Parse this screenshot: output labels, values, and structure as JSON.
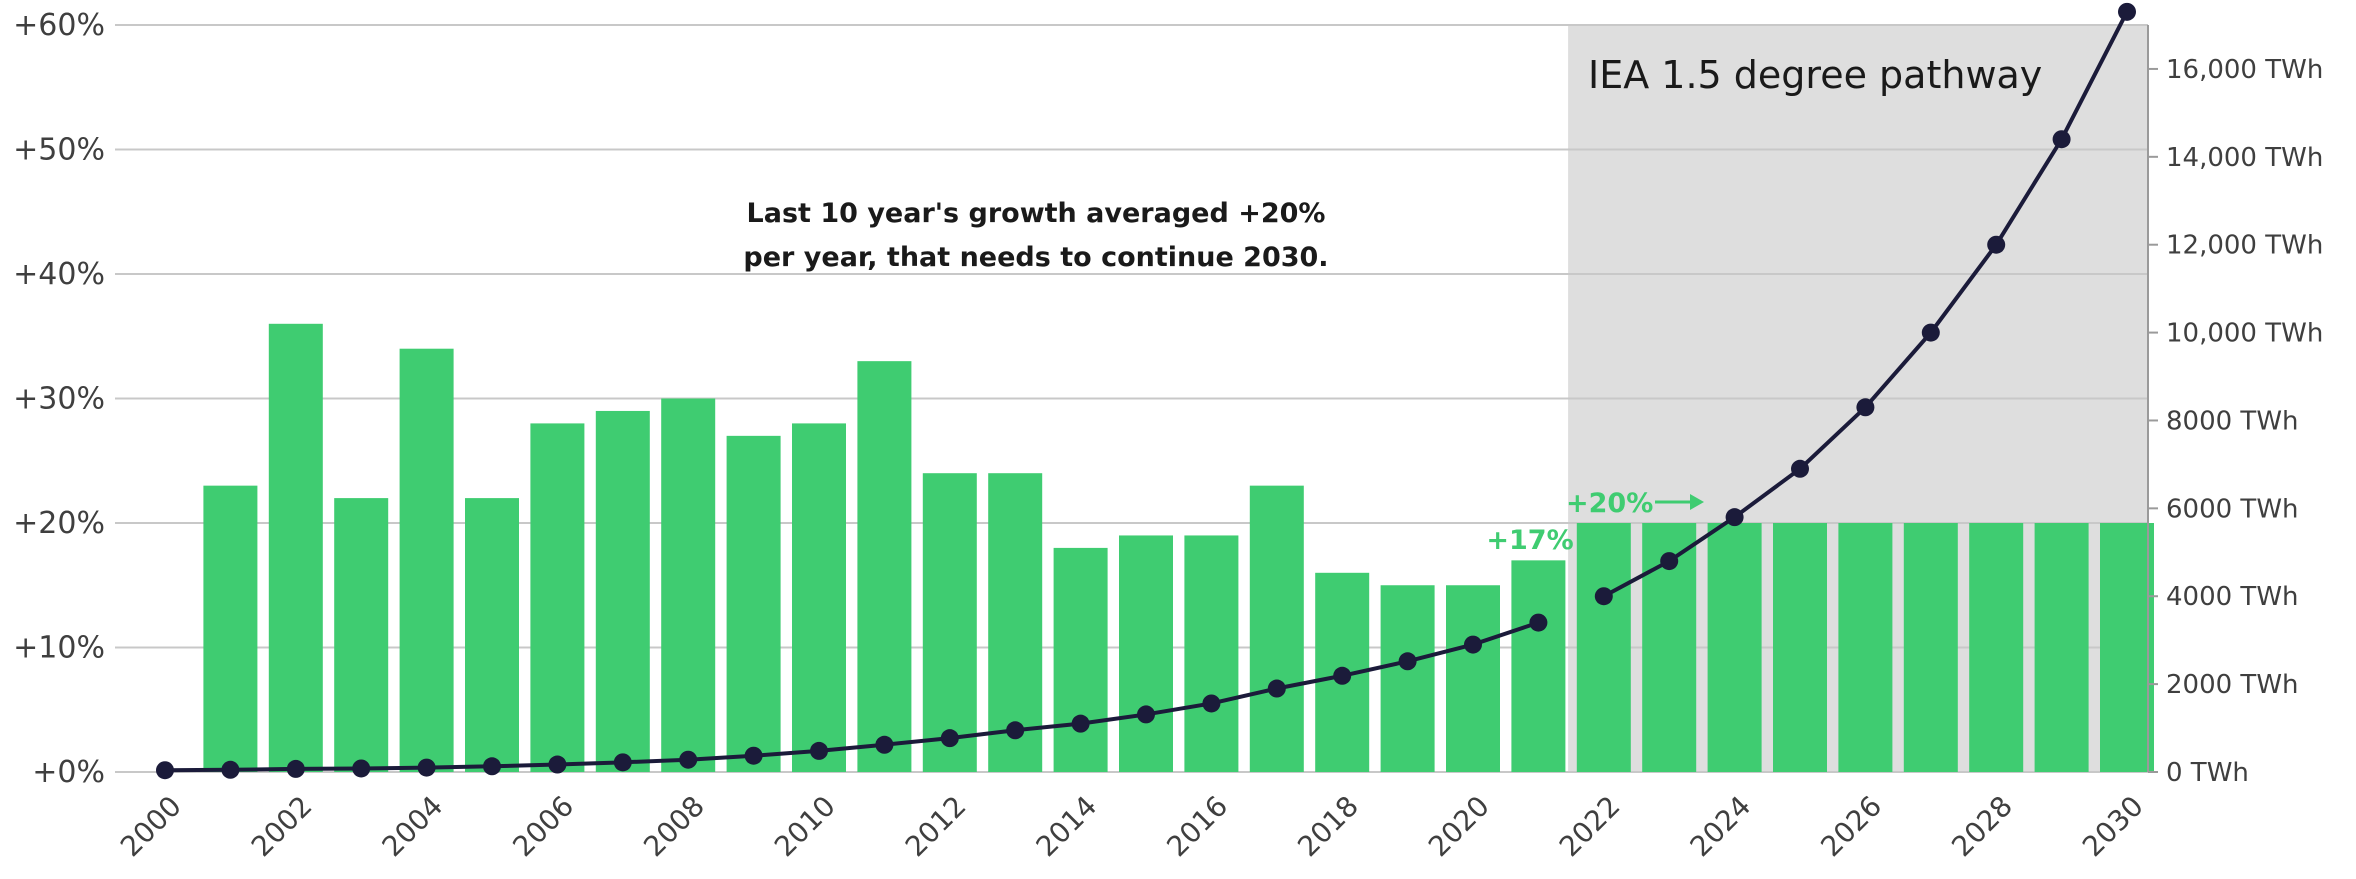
{
  "chart_data": {
    "type": "bar",
    "years": [
      "2000",
      "2001",
      "2002",
      "2003",
      "2004",
      "2005",
      "2006",
      "2007",
      "2008",
      "2009",
      "2010",
      "2011",
      "2012",
      "2013",
      "2014",
      "2015",
      "2016",
      "2017",
      "2018",
      "2019",
      "2020",
      "2021",
      "2022",
      "2023",
      "2024",
      "2025",
      "2026",
      "2027",
      "2028",
      "2029",
      "2030"
    ],
    "x_tick_labels": [
      "2000",
      "2002",
      "2004",
      "2006",
      "2008",
      "2010",
      "2012",
      "2014",
      "2016",
      "2018",
      "2020",
      "2022",
      "2024",
      "2026",
      "2028",
      "2030"
    ],
    "growth_pct": [
      0,
      23,
      36,
      22,
      34,
      22,
      28,
      29,
      30,
      27,
      28,
      33,
      24,
      24,
      18,
      19,
      19,
      23,
      16,
      15,
      15,
      17,
      20,
      20,
      20,
      20,
      20,
      20,
      20,
      20,
      20
    ],
    "generation_twh_historical": {
      "years": [
        "2000",
        "2001",
        "2002",
        "2003",
        "2004",
        "2005",
        "2006",
        "2007",
        "2008",
        "2009",
        "2010",
        "2011",
        "2012",
        "2013",
        "2014",
        "2015",
        "2016",
        "2017",
        "2018",
        "2019",
        "2020",
        "2021"
      ],
      "values": [
        40,
        50,
        70,
        80,
        100,
        130,
        170,
        220,
        280,
        370,
        480,
        620,
        770,
        950,
        1100,
        1310,
        1560,
        1900,
        2190,
        2520,
        2900,
        3400
      ]
    },
    "generation_twh_pathway": {
      "years": [
        "2022",
        "2023",
        "2024",
        "2025",
        "2026",
        "2027",
        "2028",
        "2029",
        "2030"
      ],
      "values": [
        4000,
        4800,
        5800,
        6900,
        8300,
        10000,
        12000,
        14400,
        17300
      ]
    },
    "left_axis": {
      "ylim": [
        0,
        60
      ],
      "tick_labels": [
        "+0%",
        "+10%",
        "+20%",
        "+30%",
        "+40%",
        "+50%",
        "+60%"
      ]
    },
    "right_axis": {
      "ylim": [
        0,
        17000
      ],
      "tick_values": [
        0,
        2000,
        4000,
        6000,
        8000,
        10000,
        12000,
        14000,
        16000
      ],
      "tick_labels": [
        "0 TWh",
        "2000 TWh",
        "4000 TWh",
        "6000 TWh",
        "8000 TWh",
        "10,000 TWh",
        "12,000 TWh",
        "14,000 TWh",
        "16,000 TWh"
      ]
    },
    "annotations": {
      "note_line1": "Last 10 year's growth averaged +20%",
      "note_line2": "per year, that needs to continue 2030.",
      "pathway_label": "IEA 1.5 degree pathway",
      "label_2021": "+17%",
      "label_2022": "+20%"
    },
    "pathway_start_year": "2022",
    "grid": true,
    "colors": {
      "bar": "#3fcc71",
      "line": "#1b1b3a",
      "pathway_shade": "#dedede",
      "grid": "#c8c8c8"
    }
  }
}
